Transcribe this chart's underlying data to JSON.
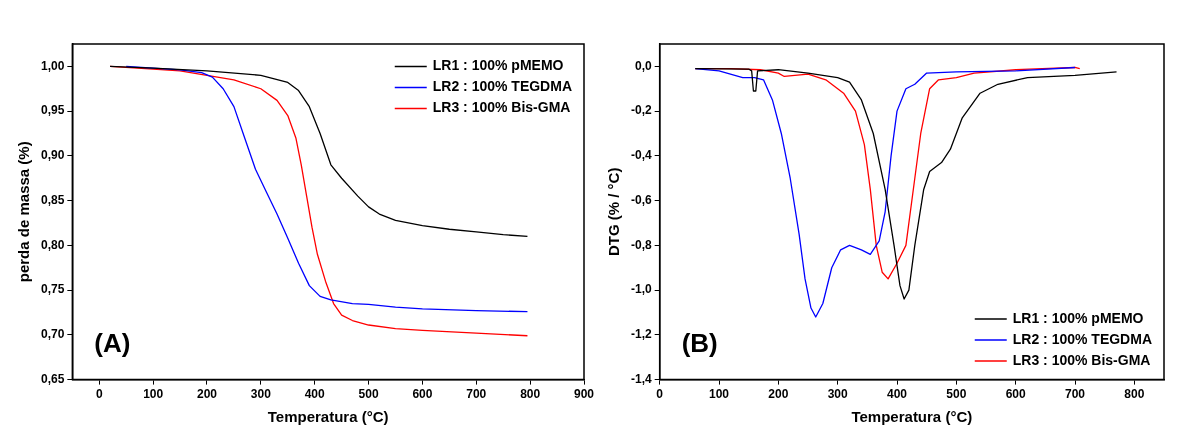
{
  "chart_data": [
    {
      "type": "line",
      "xlabel": "Temperatura (°C)",
      "ylabel": "perda de massa (%)",
      "xlim": [
        -50,
        900
      ],
      "xticks": [
        0,
        100,
        200,
        300,
        400,
        500,
        600,
        700,
        800,
        900
      ],
      "ylim": [
        0.65,
        1.025
      ],
      "yticks": [
        {
          "value": 0.65,
          "label": "0,65"
        },
        {
          "value": 0.7,
          "label": "0,70"
        },
        {
          "value": 0.75,
          "label": "0,75"
        },
        {
          "value": 0.8,
          "label": "0,80"
        },
        {
          "value": 0.85,
          "label": "0,85"
        },
        {
          "value": 0.9,
          "label": "0,90"
        },
        {
          "value": 0.95,
          "label": "0,95"
        },
        {
          "value": 1.0,
          "label": "1,00"
        }
      ],
      "grid": false,
      "legend": "top right",
      "marker": "none",
      "line_style": "solid",
      "annotations": [
        "(A)"
      ],
      "series": [
        {
          "name": "LR1 : 100% pMEMO",
          "color": "#000000",
          "x": [
            20,
            100,
            200,
            300,
            350,
            370,
            390,
            410,
            430,
            450,
            480,
            500,
            520,
            550,
            600,
            650,
            700,
            750,
            795
          ],
          "values": [
            1.0,
            0.998,
            0.995,
            0.99,
            0.982,
            0.973,
            0.955,
            0.925,
            0.89,
            0.875,
            0.855,
            0.843,
            0.835,
            0.828,
            0.822,
            0.818,
            0.815,
            0.812,
            0.81
          ]
        },
        {
          "name": "LR2 : 100% TEGDMA",
          "color": "#0000ff",
          "x": [
            50,
            100,
            150,
            190,
            210,
            230,
            250,
            270,
            290,
            310,
            330,
            350,
            370,
            390,
            410,
            430,
            470,
            500,
            550,
            600,
            700,
            795
          ],
          "values": [
            1.0,
            0.998,
            0.996,
            0.993,
            0.988,
            0.975,
            0.955,
            0.92,
            0.885,
            0.86,
            0.835,
            0.808,
            0.78,
            0.755,
            0.743,
            0.739,
            0.735,
            0.734,
            0.731,
            0.729,
            0.727,
            0.726
          ]
        },
        {
          "name": "LR3 : 100% Bis-GMA",
          "color": "#ff0000",
          "x": [
            20,
            100,
            150,
            200,
            250,
            300,
            330,
            350,
            365,
            375,
            385,
            395,
            405,
            420,
            435,
            450,
            470,
            500,
            550,
            600,
            700,
            795
          ],
          "values": [
            1.0,
            0.997,
            0.995,
            0.99,
            0.985,
            0.975,
            0.962,
            0.945,
            0.92,
            0.89,
            0.855,
            0.82,
            0.79,
            0.76,
            0.735,
            0.722,
            0.716,
            0.711,
            0.707,
            0.705,
            0.702,
            0.699
          ]
        }
      ]
    },
    {
      "type": "line",
      "xlabel": "Temperatura (°C)",
      "ylabel": "DTG (% / °C)",
      "xlim": [
        0,
        850
      ],
      "xticks": [
        0,
        100,
        200,
        300,
        400,
        500,
        600,
        700,
        800
      ],
      "ylim": [
        -1.4,
        0.1
      ],
      "yticks": [
        {
          "value": -1.4,
          "label": "-1,4"
        },
        {
          "value": -1.2,
          "label": "-1,2"
        },
        {
          "value": -1.0,
          "label": "-1,0"
        },
        {
          "value": -0.8,
          "label": "-0,8"
        },
        {
          "value": -0.6,
          "label": "-0,6"
        },
        {
          "value": -0.4,
          "label": "-0,4"
        },
        {
          "value": -0.2,
          "label": "-0,2"
        },
        {
          "value": 0,
          "label": "0,0"
        }
      ],
      "grid": false,
      "legend": "bottom right",
      "marker": "none",
      "line_style": "solid",
      "annotations": [
        "(B)"
      ],
      "series": [
        {
          "name": "LR1 : 100% pMEMO",
          "color": "#000000",
          "x": [
            60,
            150,
            155,
            158,
            162,
            165,
            200,
            250,
            300,
            320,
            340,
            360,
            380,
            395,
            405,
            412,
            420,
            430,
            445,
            455,
            475,
            490,
            510,
            540,
            570,
            620,
            700,
            770
          ],
          "values": [
            -0.01,
            -0.012,
            -0.02,
            -0.11,
            -0.11,
            -0.02,
            -0.015,
            -0.03,
            -0.05,
            -0.07,
            -0.15,
            -0.3,
            -0.55,
            -0.8,
            -0.98,
            -1.04,
            -1.0,
            -0.8,
            -0.55,
            -0.47,
            -0.43,
            -0.37,
            -0.23,
            -0.12,
            -0.08,
            -0.05,
            -0.04,
            -0.025
          ]
        },
        {
          "name": "LR2 : 100% TEGDMA",
          "color": "#0000ff",
          "x": [
            60,
            100,
            140,
            160,
            175,
            190,
            205,
            220,
            235,
            245,
            255,
            263,
            275,
            290,
            305,
            320,
            340,
            355,
            370,
            380,
            390,
            400,
            415,
            430,
            450,
            500,
            600,
            700
          ],
          "values": [
            -0.01,
            -0.02,
            -0.05,
            -0.05,
            -0.06,
            -0.15,
            -0.3,
            -0.5,
            -0.75,
            -0.95,
            -1.08,
            -1.12,
            -1.06,
            -0.9,
            -0.82,
            -0.8,
            -0.82,
            -0.84,
            -0.78,
            -0.65,
            -0.4,
            -0.2,
            -0.1,
            -0.08,
            -0.03,
            -0.025,
            -0.02,
            -0.005
          ]
        },
        {
          "name": "LR3 : 100% Bis-GMA",
          "color": "#ff0000",
          "x": [
            60,
            120,
            170,
            200,
            210,
            250,
            280,
            310,
            330,
            345,
            355,
            365,
            375,
            385,
            400,
            415,
            430,
            440,
            455,
            470,
            500,
            530,
            600,
            700,
            708
          ],
          "values": [
            -0.01,
            -0.01,
            -0.015,
            -0.03,
            -0.045,
            -0.035,
            -0.06,
            -0.12,
            -0.2,
            -0.35,
            -0.55,
            -0.8,
            -0.92,
            -0.95,
            -0.88,
            -0.8,
            -0.5,
            -0.3,
            -0.1,
            -0.06,
            -0.05,
            -0.03,
            -0.015,
            -0.005,
            -0.01
          ]
        }
      ]
    }
  ]
}
